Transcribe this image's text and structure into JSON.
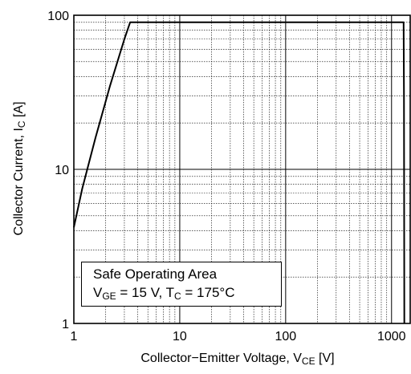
{
  "chart_data": {
    "type": "line",
    "title": "",
    "xlabel": "Collector−Emitter Voltage, V",
    "xlabel_sub": "CE",
    "xlabel_unit": " [V]",
    "ylabel": "Collector Current, I",
    "ylabel_sub": "C",
    "ylabel_unit": " [A]",
    "x_scale": "log",
    "y_scale": "log",
    "xlim": [
      1,
      1500
    ],
    "ylim": [
      1,
      100
    ],
    "x_ticks": [
      1,
      10,
      100,
      1000
    ],
    "x_tick_labels": [
      "1",
      "10",
      "100",
      "1000"
    ],
    "y_ticks": [
      1,
      10,
      100
    ],
    "y_tick_labels": [
      "1",
      "10",
      "100"
    ],
    "grid": true,
    "series": [
      {
        "color": "#000000",
        "x": [
          1,
          1.2,
          1.6,
          2.2,
          3,
          3.4,
          1000,
          1300,
          1310,
          1320
        ],
        "y": [
          4.2,
          7.5,
          16,
          35,
          70,
          90,
          90,
          90,
          30,
          1
        ]
      }
    ],
    "annotation": {
      "line1": "Safe Operating Area",
      "line2_a": "V",
      "line2_a_sub": "GE",
      "line2_b": " = 15 V, T",
      "line2_b_sub": "C",
      "line2_c": " = 175°C"
    }
  }
}
